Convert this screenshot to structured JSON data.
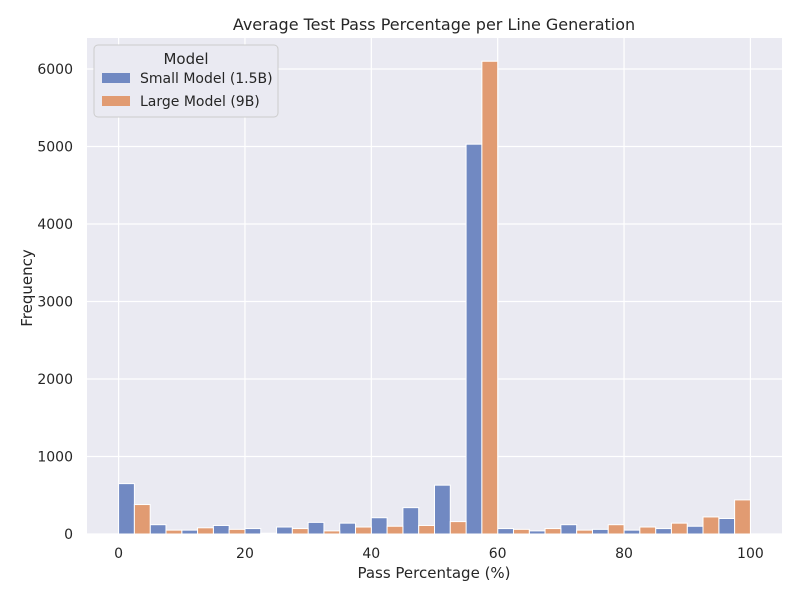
{
  "chart_data": {
    "type": "bar",
    "title": "Average Test Pass Percentage per Line Generation",
    "xlabel": "Pass Percentage (%)",
    "ylabel": "Frequency",
    "xlim": [
      -5,
      105
    ],
    "ylim": [
      0,
      6400
    ],
    "xticks": [
      0,
      20,
      40,
      60,
      80,
      100
    ],
    "yticks": [
      0,
      1000,
      2000,
      3000,
      4000,
      5000,
      6000
    ],
    "bin_width": 5,
    "grid": true,
    "legend": {
      "title": "Model",
      "placement": "top-left"
    },
    "bins": [
      0,
      5,
      10,
      15,
      20,
      25,
      30,
      35,
      40,
      45,
      50,
      55,
      60,
      65,
      70,
      75,
      80,
      85,
      90,
      95
    ],
    "series": [
      {
        "name": "Small Model (1.5B)",
        "color": "#7189c2",
        "values": [
          650,
          120,
          50,
          110,
          70,
          90,
          150,
          140,
          210,
          340,
          630,
          5030,
          70,
          40,
          120,
          60,
          50,
          70,
          100,
          200
        ]
      },
      {
        "name": "Large Model (9B)",
        "color": "#e19b72",
        "values": [
          380,
          50,
          80,
          60,
          10,
          70,
          40,
          90,
          100,
          110,
          160,
          6100,
          60,
          70,
          50,
          120,
          90,
          140,
          220,
          440
        ]
      }
    ]
  }
}
